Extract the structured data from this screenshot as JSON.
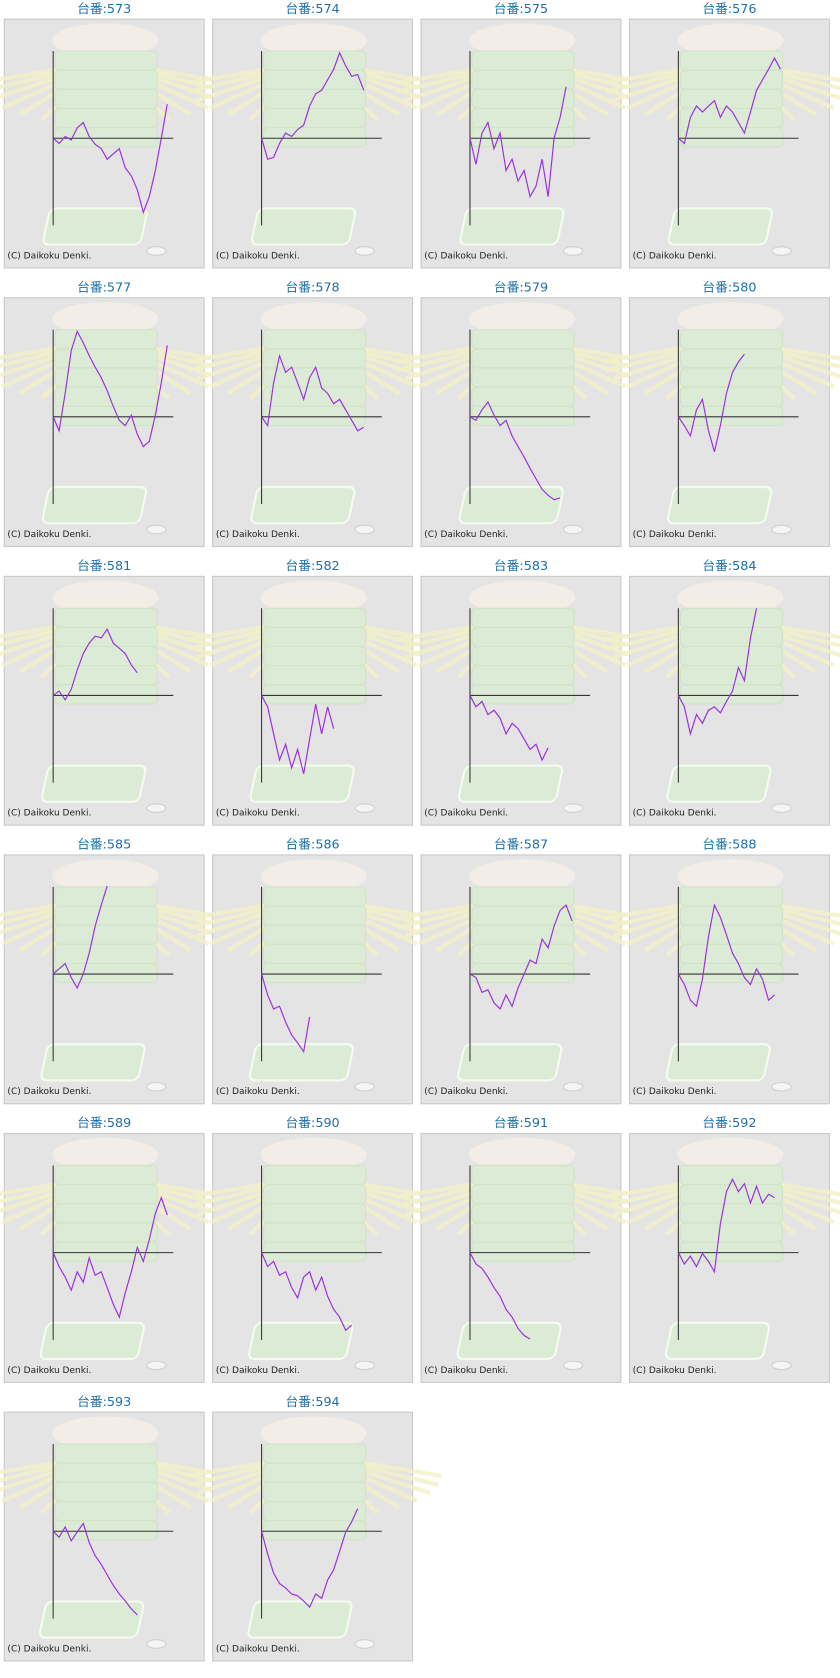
{
  "chart_data": [
    {
      "type": "line",
      "title": "台番:573",
      "annotation": "(C) Daikoku Denki.",
      "color": "#9b2ee0",
      "xlim": [
        0,
        20
      ],
      "ylim": [
        -100,
        100
      ],
      "values": [
        0,
        -6,
        2,
        -2,
        12,
        18,
        2,
        -7,
        -12,
        -24,
        -18,
        -12,
        -34,
        -43,
        -59,
        -85,
        -67,
        -37,
        0,
        39
      ]
    },
    {
      "type": "line",
      "title": "台番:574",
      "annotation": "(C) Daikoku Denki.",
      "color": "#9b2ee0",
      "xlim": [
        0,
        20
      ],
      "ylim": [
        -100,
        100
      ],
      "values": [
        0,
        -24,
        -22,
        -6,
        6,
        2,
        10,
        15,
        37,
        51,
        55,
        67,
        79,
        98,
        83,
        71,
        73,
        55
      ]
    },
    {
      "type": "line",
      "title": "台番:575",
      "annotation": "(C) Daikoku Denki.",
      "color": "#9b2ee0",
      "xlim": [
        0,
        20
      ],
      "ylim": [
        -100,
        100
      ],
      "values": [
        0,
        -30,
        6,
        18,
        -12,
        6,
        -37,
        -24,
        -49,
        -37,
        -67,
        -55,
        -24,
        -67,
        0,
        24,
        59
      ]
    },
    {
      "type": "line",
      "title": "台番:576",
      "annotation": "(C) Daikoku Denki.",
      "color": "#9b2ee0",
      "xlim": [
        0,
        20
      ],
      "ylim": [
        -100,
        100
      ],
      "values": [
        0,
        -6,
        24,
        37,
        30,
        37,
        43,
        24,
        37,
        30,
        18,
        6,
        30,
        55,
        67,
        79,
        92,
        79
      ]
    },
    {
      "type": "line",
      "title": "台番:577",
      "annotation": "(C) Daikoku Denki.",
      "color": "#9b2ee0",
      "xlim": [
        0,
        20
      ],
      "ylim": [
        -100,
        100
      ],
      "values": [
        0,
        -16,
        27,
        76,
        98,
        85,
        70,
        57,
        45,
        30,
        12,
        -4,
        -10,
        2,
        -20,
        -34,
        -28,
        2,
        39,
        82
      ]
    },
    {
      "type": "line",
      "title": "台番:578",
      "annotation": "(C) Daikoku Denki.",
      "color": "#9b2ee0",
      "xlim": [
        0,
        20
      ],
      "ylim": [
        -100,
        100
      ],
      "values": [
        0,
        -10,
        39,
        70,
        51,
        57,
        39,
        20,
        45,
        57,
        33,
        27,
        15,
        20,
        8,
        -4,
        -16,
        -12
      ]
    },
    {
      "type": "line",
      "title": "台番:579",
      "annotation": "(C) Daikoku Denki.",
      "color": "#9b2ee0",
      "xlim": [
        0,
        20
      ],
      "ylim": [
        -100,
        100
      ],
      "values": [
        0,
        -4,
        8,
        17,
        2,
        -10,
        -4,
        -22,
        -34,
        -46,
        -59,
        -71,
        -83,
        -90,
        -95,
        -93
      ]
    },
    {
      "type": "line",
      "title": "台番:580",
      "annotation": "(C) Daikoku Denki.",
      "color": "#9b2ee0",
      "xlim": [
        0,
        20
      ],
      "ylim": [
        -100,
        100
      ],
      "values": [
        0,
        -10,
        -22,
        8,
        20,
        -16,
        -40,
        -10,
        27,
        51,
        63,
        72
      ]
    },
    {
      "type": "line",
      "title": "台番:581",
      "annotation": "(C) Daikoku Denki.",
      "color": "#9b2ee0",
      "xlim": [
        0,
        20
      ],
      "ylim": [
        -100,
        100
      ],
      "values": [
        0,
        5,
        -5,
        7,
        29,
        48,
        60,
        68,
        66,
        76,
        60,
        54,
        48,
        35,
        26
      ]
    },
    {
      "type": "line",
      "title": "台番:582",
      "annotation": "(C) Daikoku Denki.",
      "color": "#9b2ee0",
      "xlim": [
        0,
        20
      ],
      "ylim": [
        -100,
        100
      ],
      "values": [
        0,
        -13,
        -44,
        -74,
        -56,
        -83,
        -62,
        -90,
        -50,
        -10,
        -44,
        -13,
        -38
      ]
    },
    {
      "type": "line",
      "title": "台番:583",
      "annotation": "(C) Daikoku Denki.",
      "color": "#9b2ee0",
      "xlim": [
        0,
        20
      ],
      "ylim": [
        -100,
        100
      ],
      "values": [
        0,
        -13,
        -7,
        -22,
        -17,
        -26,
        -44,
        -32,
        -38,
        -50,
        -62,
        -56,
        -74,
        -60
      ]
    },
    {
      "type": "line",
      "title": "台番:584",
      "annotation": "(C) Daikoku Denki.",
      "color": "#9b2ee0",
      "xlim": [
        0,
        20
      ],
      "ylim": [
        -100,
        100
      ],
      "values": [
        0,
        -13,
        -44,
        -22,
        -32,
        -17,
        -13,
        -20,
        -7,
        5,
        32,
        17,
        66,
        100
      ]
    },
    {
      "type": "line",
      "title": "台番:585",
      "annotation": "(C) Daikoku Denki.",
      "color": "#9b2ee0",
      "xlim": [
        0,
        20
      ],
      "ylim": [
        -100,
        100
      ],
      "values": [
        0,
        6,
        12,
        -4,
        -16,
        0,
        24,
        55,
        79,
        101
      ]
    },
    {
      "type": "line",
      "title": "台番:586",
      "annotation": "(C) Daikoku Denki.",
      "color": "#9b2ee0",
      "xlim": [
        0,
        20
      ],
      "ylim": [
        -100,
        100
      ],
      "values": [
        0,
        -24,
        -40,
        -37,
        -55,
        -70,
        -79,
        -89,
        -49
      ]
    },
    {
      "type": "line",
      "title": "台番:587",
      "annotation": "(C) Daikoku Denki.",
      "color": "#9b2ee0",
      "xlim": [
        0,
        20
      ],
      "ylim": [
        -100,
        100
      ],
      "values": [
        0,
        -4,
        -21,
        -18,
        -33,
        -40,
        -24,
        -37,
        -16,
        0,
        16,
        12,
        40,
        30,
        55,
        73,
        79,
        61
      ]
    },
    {
      "type": "line",
      "title": "台番:588",
      "annotation": "(C) Daikoku Denki.",
      "color": "#9b2ee0",
      "xlim": [
        0,
        20
      ],
      "ylim": [
        -100,
        100
      ],
      "values": [
        0,
        -12,
        -30,
        -37,
        -6,
        43,
        79,
        65,
        45,
        24,
        12,
        -4,
        -12,
        6,
        -6,
        -30,
        -24
      ]
    },
    {
      "type": "line",
      "title": "台番:589",
      "annotation": "(C) Daikoku Denki.",
      "color": "#9b2ee0",
      "xlim": [
        0,
        20
      ],
      "ylim": [
        -100,
        100
      ],
      "values": [
        0,
        -16,
        -28,
        -43,
        -22,
        -34,
        -6,
        -26,
        -22,
        -40,
        -59,
        -74,
        -46,
        -22,
        6,
        -10,
        15,
        45,
        63,
        43
      ]
    },
    {
      "type": "line",
      "title": "台番:590",
      "annotation": "(C) Daikoku Denki.",
      "color": "#9b2ee0",
      "xlim": [
        0,
        20
      ],
      "ylim": [
        -100,
        100
      ],
      "values": [
        0,
        -16,
        -10,
        -26,
        -22,
        -40,
        -52,
        -28,
        -22,
        -43,
        -28,
        -50,
        -65,
        -74,
        -89,
        -83
      ]
    },
    {
      "type": "line",
      "title": "台番:591",
      "annotation": "(C) Daikoku Denki.",
      "color": "#9b2ee0",
      "xlim": [
        0,
        20
      ],
      "ylim": [
        -100,
        100
      ],
      "values": [
        0,
        -13,
        -18,
        -28,
        -40,
        -50,
        -65,
        -74,
        -87,
        -95,
        -99
      ]
    },
    {
      "type": "line",
      "title": "台番:592",
      "annotation": "(C) Daikoku Denki.",
      "color": "#9b2ee0",
      "xlim": [
        0,
        20
      ],
      "ylim": [
        -100,
        100
      ],
      "values": [
        0,
        -13,
        -4,
        -16,
        -1,
        -10,
        -22,
        33,
        70,
        84,
        70,
        79,
        57,
        76,
        57,
        67,
        63
      ]
    },
    {
      "type": "line",
      "title": "台番:593",
      "annotation": "(C) Daikoku Denki.",
      "color": "#9b2ee0",
      "xlim": [
        0,
        20
      ],
      "ylim": [
        -100,
        100
      ],
      "values": [
        0,
        -7,
        5,
        -11,
        -1,
        9,
        -13,
        -28,
        -38,
        -50,
        -62,
        -72,
        -80,
        -89,
        -96
      ]
    },
    {
      "type": "line",
      "title": "台番:594",
      "annotation": "(C) Daikoku Denki.",
      "color": "#9b2ee0",
      "xlim": [
        0,
        20
      ],
      "ylim": [
        -100,
        100
      ],
      "values": [
        0,
        -26,
        -48,
        -60,
        -65,
        -72,
        -74,
        -80,
        -87,
        -72,
        -77,
        -56,
        -44,
        -23,
        -1,
        11,
        26
      ]
    }
  ]
}
